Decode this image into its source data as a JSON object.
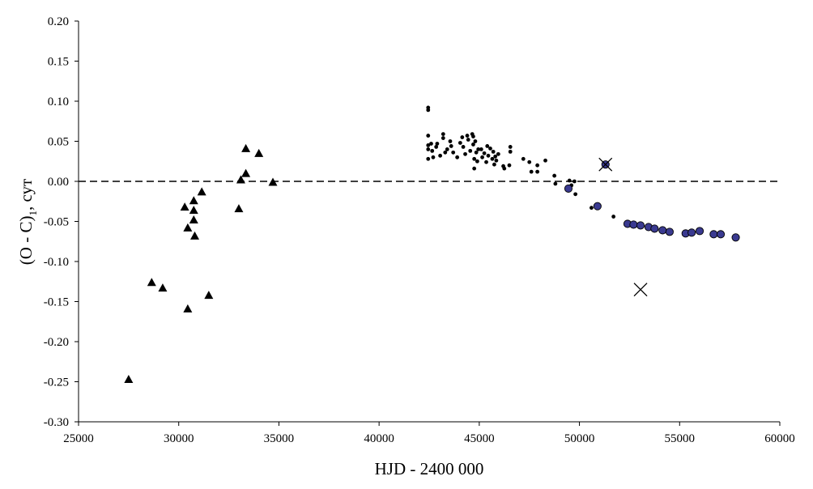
{
  "chart_data": {
    "type": "scatter",
    "title": "",
    "xlabel": "HJD - 2400 000",
    "ylabel": "(O - C)",
    "ylabel_subscript": "1",
    "ylabel_suffix": ", сут",
    "xlim": [
      25000,
      60000
    ],
    "ylim": [
      -0.3,
      0.2
    ],
    "xticks": [
      "25000",
      "30000",
      "35000",
      "40000",
      "45000",
      "50000",
      "55000",
      "60000"
    ],
    "yticks": [
      "0.20",
      "0.15",
      "0.10",
      "0.05",
      "0.00",
      "-0.05",
      "-0.10",
      "-0.15",
      "-0.20",
      "-0.25",
      "-0.30"
    ],
    "grid": false,
    "legend": "none",
    "reference_line": {
      "y": 0.0,
      "style": "dashed"
    },
    "colors": {
      "filled_circle": "#3a3a90",
      "marker": "#000000"
    },
    "series": [
      {
        "marker": "triangle",
        "points": [
          [
            27500,
            -0.247
          ],
          [
            28650,
            -0.126
          ],
          [
            29200,
            -0.133
          ],
          [
            30300,
            -0.032
          ],
          [
            30450,
            -0.058
          ],
          [
            30450,
            -0.159
          ],
          [
            30750,
            -0.024
          ],
          [
            30750,
            -0.036
          ],
          [
            30750,
            -0.048
          ],
          [
            30800,
            -0.068
          ],
          [
            31150,
            -0.013
          ],
          [
            31500,
            -0.142
          ],
          [
            33000,
            -0.034
          ],
          [
            33100,
            0.002
          ],
          [
            33350,
            0.041
          ],
          [
            33350,
            0.01
          ],
          [
            34000,
            0.035
          ],
          [
            34700,
            -0.001
          ]
        ]
      },
      {
        "marker": "small-dot",
        "points": [
          [
            42450,
            0.092
          ],
          [
            42450,
            0.089
          ],
          [
            42450,
            0.057
          ],
          [
            42450,
            0.045
          ],
          [
            42450,
            0.04
          ],
          [
            42450,
            0.028
          ],
          [
            42600,
            0.047
          ],
          [
            42650,
            0.038
          ],
          [
            42700,
            0.03
          ],
          [
            42850,
            0.043
          ],
          [
            42900,
            0.047
          ],
          [
            43050,
            0.032
          ],
          [
            43200,
            0.059
          ],
          [
            43200,
            0.054
          ],
          [
            43300,
            0.036
          ],
          [
            43400,
            0.04
          ],
          [
            43550,
            0.05
          ],
          [
            43600,
            0.044
          ],
          [
            43700,
            0.036
          ],
          [
            43900,
            0.03
          ],
          [
            44050,
            0.048
          ],
          [
            44150,
            0.055
          ],
          [
            44200,
            0.043
          ],
          [
            44300,
            0.034
          ],
          [
            44400,
            0.057
          ],
          [
            44450,
            0.052
          ],
          [
            44550,
            0.038
          ],
          [
            44650,
            0.059
          ],
          [
            44700,
            0.056
          ],
          [
            44700,
            0.046
          ],
          [
            44750,
            0.028
          ],
          [
            44750,
            0.016
          ],
          [
            44800,
            0.05
          ],
          [
            44850,
            0.036
          ],
          [
            44900,
            0.025
          ],
          [
            44950,
            0.04
          ],
          [
            45100,
            0.04
          ],
          [
            45150,
            0.03
          ],
          [
            45250,
            0.035
          ],
          [
            45350,
            0.024
          ],
          [
            45400,
            0.044
          ],
          [
            45450,
            0.032
          ],
          [
            45550,
            0.041
          ],
          [
            45650,
            0.028
          ],
          [
            45700,
            0.037
          ],
          [
            45750,
            0.021
          ],
          [
            45800,
            0.031
          ],
          [
            45850,
            0.026
          ],
          [
            45950,
            0.034
          ],
          [
            46200,
            0.019
          ],
          [
            46250,
            0.016
          ],
          [
            46500,
            0.02
          ],
          [
            46550,
            0.043
          ],
          [
            46550,
            0.037
          ],
          [
            47200,
            0.028
          ],
          [
            47500,
            0.024
          ],
          [
            47600,
            0.012
          ],
          [
            47900,
            0.02
          ],
          [
            47900,
            0.012
          ],
          [
            48300,
            0.026
          ],
          [
            48750,
            0.007
          ],
          [
            48800,
            -0.003
          ],
          [
            49500,
            0.001
          ],
          [
            49600,
            -0.005
          ],
          [
            49750,
            0.0
          ],
          [
            49800,
            -0.016
          ],
          [
            50600,
            -0.033
          ],
          [
            51700,
            -0.044
          ]
        ]
      },
      {
        "marker": "filled-circle",
        "points": [
          [
            49450,
            -0.009
          ],
          [
            50900,
            -0.031
          ],
          [
            51300,
            0.021
          ],
          [
            52400,
            -0.053
          ],
          [
            52700,
            -0.054
          ],
          [
            53050,
            -0.055
          ],
          [
            53450,
            -0.057
          ],
          [
            53750,
            -0.059
          ],
          [
            54150,
            -0.061
          ],
          [
            54500,
            -0.063
          ],
          [
            55300,
            -0.065
          ],
          [
            55600,
            -0.064
          ],
          [
            56000,
            -0.062
          ],
          [
            56700,
            -0.066
          ],
          [
            57050,
            -0.066
          ],
          [
            57800,
            -0.07
          ]
        ]
      },
      {
        "marker": "cross",
        "points": [
          [
            51300,
            0.021
          ],
          [
            53050,
            -0.135
          ]
        ]
      }
    ]
  }
}
